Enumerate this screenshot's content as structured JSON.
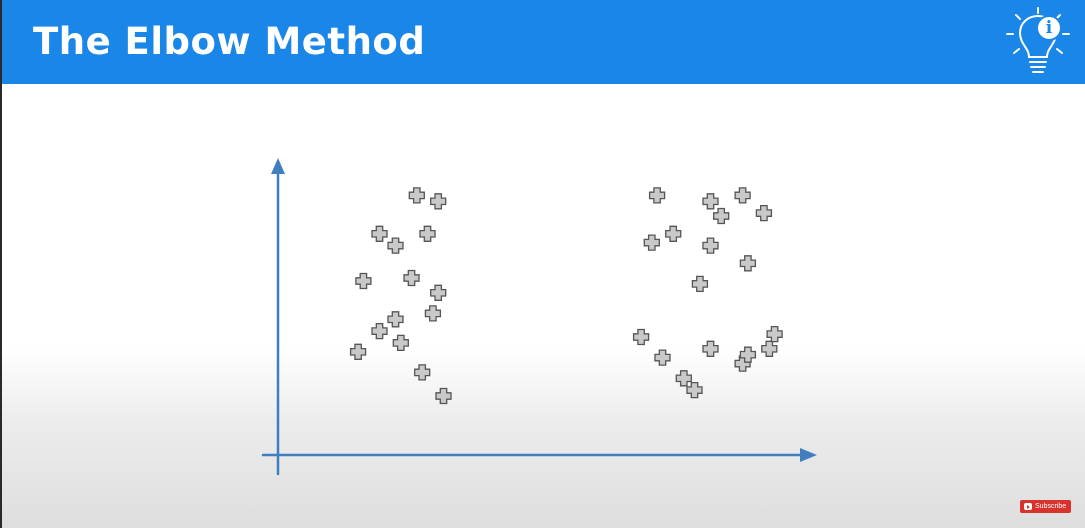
{
  "slide": {
    "title": "The Elbow Method",
    "header_color": "#1a86e8",
    "header_icon": "lightbulb-icon",
    "badge_icon": "info-icon",
    "badge_glyph": "i"
  },
  "chart_data": {
    "type": "scatter",
    "title": "",
    "xlabel": "",
    "ylabel": "",
    "marker": "plus",
    "axis_color": "#3f7fbf",
    "marker_color": "#8c8c8c",
    "grid": false,
    "xlim": [
      0,
      100
    ],
    "ylim": [
      0,
      100
    ],
    "series": [
      {
        "points": [
          [
            15,
            35
          ],
          [
            16,
            59
          ],
          [
            19,
            75
          ],
          [
            19,
            42
          ],
          [
            22,
            46
          ],
          [
            22,
            71
          ],
          [
            23,
            38
          ],
          [
            25,
            60
          ],
          [
            27,
            28
          ],
          [
            26,
            88
          ],
          [
            28,
            75
          ],
          [
            29,
            48
          ],
          [
            30,
            55
          ],
          [
            31,
            20
          ],
          [
            30,
            86
          ]
        ]
      },
      {
        "points": [
          [
            68,
            40
          ],
          [
            70,
            72
          ],
          [
            71,
            88
          ],
          [
            72,
            33
          ],
          [
            74,
            75
          ],
          [
            76,
            26
          ],
          [
            78,
            22
          ],
          [
            79,
            58
          ],
          [
            81,
            36
          ],
          [
            81,
            71
          ],
          [
            81,
            86
          ],
          [
            83,
            81
          ],
          [
            87,
            31
          ],
          [
            87,
            88
          ],
          [
            88,
            65
          ],
          [
            88,
            34
          ],
          [
            91,
            82
          ],
          [
            92,
            36
          ],
          [
            93,
            41
          ]
        ]
      }
    ]
  },
  "overlay": {
    "subscribe_label": "Subscribe"
  }
}
